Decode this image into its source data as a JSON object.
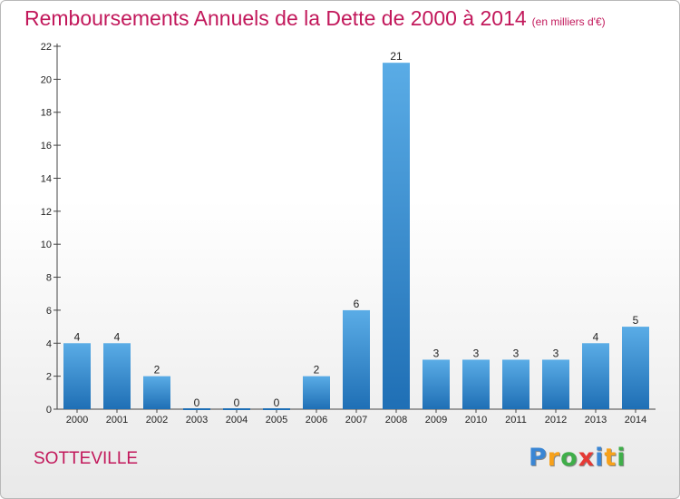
{
  "header": {
    "title": "Remboursements Annuels de la Dette de 2000 à 2014",
    "subtitle": "(en milliers d'€)"
  },
  "footer": {
    "city": "SOTTEVILLE",
    "logo_letters": [
      "P",
      "r",
      "o",
      "x",
      "i",
      "t",
      "i"
    ],
    "logo_colors": [
      "#3a86d4",
      "#f7a11a",
      "#3fae49",
      "#e53935",
      "#3a86d4",
      "#f7a11a",
      "#3fae49"
    ]
  },
  "colors": {
    "title": "#c2185b",
    "bar_top": "#5aace6",
    "bar_bottom": "#1f6fb5"
  },
  "chart_data": {
    "type": "bar",
    "title": "Remboursements Annuels de la Dette de 2000 à 2014",
    "subtitle": "(en milliers d'€)",
    "categories": [
      "2000",
      "2001",
      "2002",
      "2003",
      "2004",
      "2005",
      "2006",
      "2007",
      "2008",
      "2009",
      "2010",
      "2011",
      "2012",
      "2013",
      "2014"
    ],
    "values": [
      4,
      4,
      2,
      0,
      0,
      0,
      2,
      6,
      21,
      3,
      3,
      3,
      3,
      4,
      5
    ],
    "yticks": [
      0,
      2,
      4,
      6,
      8,
      10,
      12,
      14,
      16,
      18,
      20,
      22
    ],
    "ylim": [
      0,
      22
    ],
    "xlabel": "",
    "ylabel": "",
    "grid": false,
    "legend": "none"
  }
}
